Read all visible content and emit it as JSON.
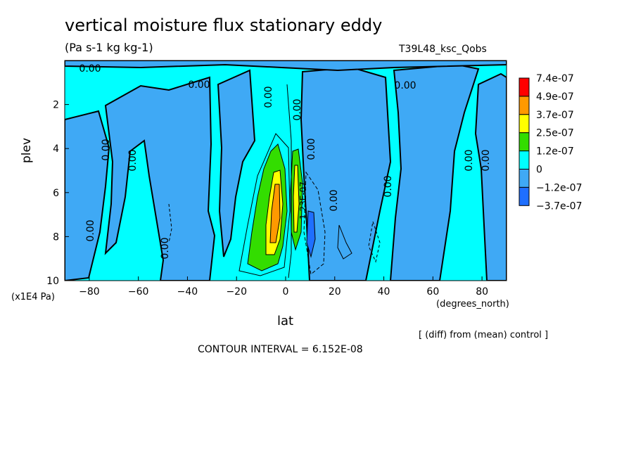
{
  "chart_data": {
    "type": "heatmap",
    "title": "vertical moisture flux stationary eddy",
    "units": "(Pa s-1 kg kg-1)",
    "run_label": "T39L48_ksc_Qobs",
    "xlabel": "lat",
    "xunit": "(degrees_north)",
    "ylabel": "plev",
    "yunit": "(x1E4 Pa)",
    "xlim": [
      -90,
      90
    ],
    "ylim": [
      10,
      0
    ],
    "x_ticks": [
      -80,
      -60,
      -40,
      -20,
      0,
      20,
      40,
      60,
      80
    ],
    "y_ticks": [
      2,
      4,
      6,
      8,
      10
    ],
    "colorbar": {
      "labels": [
        "7.4e-07",
        "4.9e-07",
        "3.7e-07",
        "2.5e-07",
        "1.2e-07",
        "0",
        "-1.2e-07",
        "-3.7e-07"
      ],
      "colors": [
        "#ff0000",
        "#ff9900",
        "#ffff00",
        "#33dd00",
        "#00ffff",
        "#3fa9f5",
        "#1f6fff"
      ]
    },
    "contour_labels": [
      "0.00",
      "0.00",
      "0.00",
      "0.00",
      "0.00",
      "0.00",
      "0.00",
      "0.00",
      "0.00",
      "0.00",
      "0.00",
      "0.00",
      "0.00",
      "0.00",
      "1.23E-07"
    ],
    "notes": {
      "diff": "[ (diff) from (mean) control ]",
      "interval": "CONTOUR INTERVAL = 6.152E-08"
    }
  }
}
